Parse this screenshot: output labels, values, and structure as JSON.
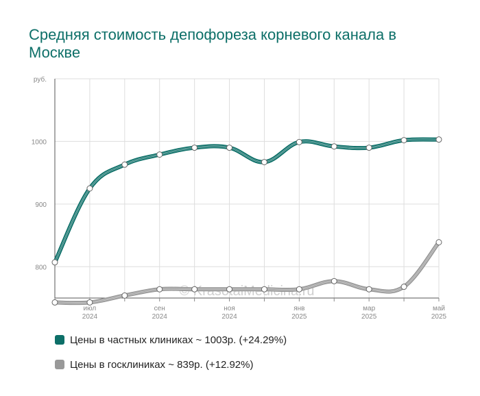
{
  "chart_data": {
    "type": "line",
    "title": "Средняя стоимость депофореза корневого канала в Москве",
    "ylabel": "руб.",
    "ylim": [
      750,
      1100
    ],
    "yticks": [
      800,
      900,
      1000
    ],
    "xlim": [
      0,
      11
    ],
    "x_ticks": [
      {
        "x": 1,
        "month": "июл",
        "year": "2024"
      },
      {
        "x": 3,
        "month": "сен",
        "year": "2024"
      },
      {
        "x": 5,
        "month": "ноя",
        "year": "2024"
      },
      {
        "x": 7,
        "month": "янв",
        "year": "2025"
      },
      {
        "x": 9,
        "month": "мар",
        "year": "2025"
      },
      {
        "x": 11,
        "month": "май",
        "year": "2025"
      }
    ],
    "x": [
      0,
      1,
      2,
      3,
      4,
      5,
      6,
      7,
      8,
      9,
      10,
      11
    ],
    "grid": true,
    "watermark": "© KrasotaiMedicina.ru",
    "series": [
      {
        "name": "Цены в частных клиниках ~ 1003р. (+24.29%)",
        "color": "#0d6f68",
        "values": [
          807,
          925,
          963,
          979,
          990,
          990,
          967,
          999,
          992,
          990,
          1002,
          1003
        ]
      },
      {
        "name": "Цены в госклиниках ~ 839р. (+12.92%)",
        "color": "#999999",
        "values": [
          743,
          743,
          754,
          764,
          764,
          764,
          764,
          764,
          777,
          764,
          768,
          839
        ]
      }
    ]
  }
}
